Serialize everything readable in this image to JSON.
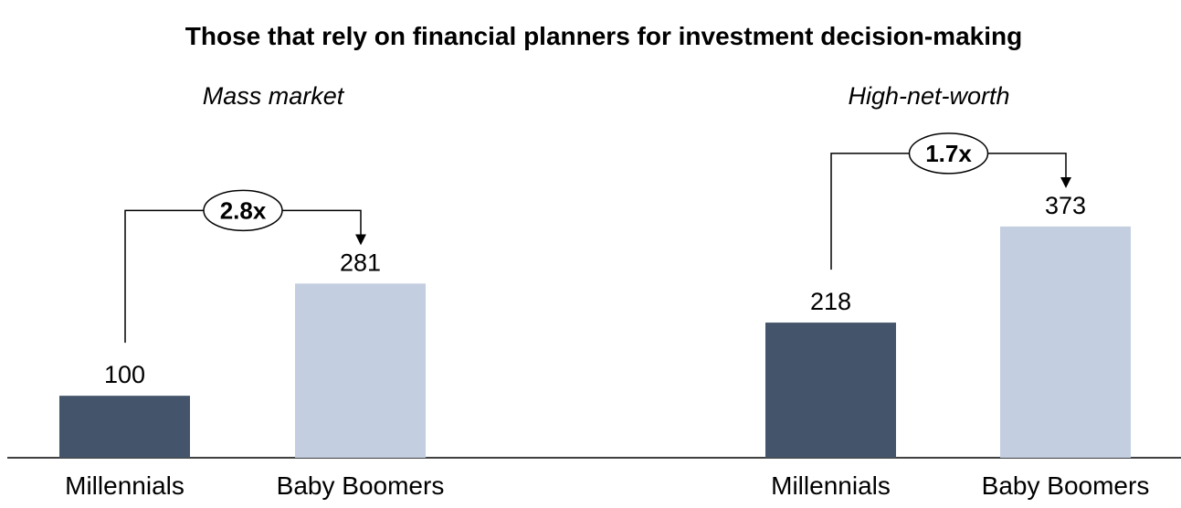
{
  "chart_data": {
    "type": "bar",
    "title": "Those that rely on financial planners for investment decision-making",
    "groups": [
      {
        "name": "Mass market",
        "categories": [
          "Millennials",
          "Baby Boomers"
        ],
        "values": [
          100,
          281
        ],
        "multiplier": "2.8x"
      },
      {
        "name": "High-net-worth",
        "categories": [
          "Millennials",
          "Baby Boomers"
        ],
        "values": [
          218,
          373
        ],
        "multiplier": "1.7x"
      }
    ],
    "ylim": [
      0,
      500
    ],
    "grid": false,
    "legend": "none"
  },
  "colors": {
    "millennials": "#44546a",
    "baby_boomers": "#c3cee0",
    "axis": "#000000"
  }
}
